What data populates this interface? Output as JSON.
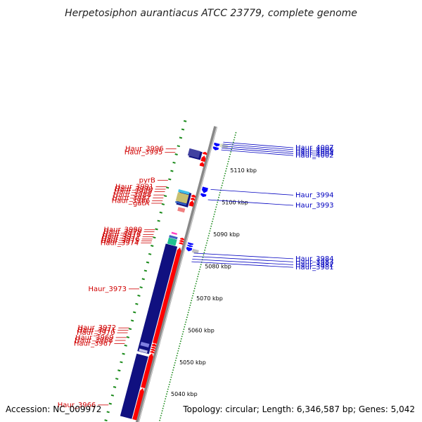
{
  "title": "Herpetosiphon aurantiacus ATCC 23779, complete genome",
  "footer": {
    "accession": "Accession: NC_009972",
    "summary": "Topology: circular; Length: 6,346,587 bp; Genes: 5,042"
  },
  "colors": {
    "forward_gene": "#ff0000",
    "reverse_gene": "#0000ff",
    "backbone": "#888888",
    "cds_bar": "#101080",
    "gc_dots": "#1a8a1a",
    "label_forward": "#d00000",
    "label_reverse": "#0000c0"
  },
  "scale": {
    "ticks": [
      {
        "kbp": 5040,
        "label": "5040 kbp"
      },
      {
        "kbp": 5050,
        "label": "5050 kbp"
      },
      {
        "kbp": 5060,
        "label": "5060 kbp"
      },
      {
        "kbp": 5070,
        "label": "5070 kbp"
      },
      {
        "kbp": 5080,
        "label": "5080 kbp"
      },
      {
        "kbp": 5090,
        "label": "5090 kbp"
      },
      {
        "kbp": 5100,
        "label": "5100 kbp"
      },
      {
        "kbp": 5110,
        "label": "5110 kbp"
      }
    ]
  },
  "forward_labels": [
    {
      "name": "Haur_3996",
      "kbp": 5112.4
    },
    {
      "name": "Haur_3995",
      "kbp": 5111.3
    },
    {
      "name": "pyrB",
      "kbp": 5102.6
    },
    {
      "name": "Haur_3991",
      "kbp": 5100.6
    },
    {
      "name": "Haur_3990",
      "kbp": 5099.8
    },
    {
      "name": "Haur_3989",
      "kbp": 5099.0
    },
    {
      "name": "Haur_3988",
      "kbp": 5098.0
    },
    {
      "name": "Haur_3987",
      "kbp": 5097.1
    },
    {
      "name": "Haur_3986",
      "kbp": 5096.2
    },
    {
      "name": "gatA",
      "kbp": 5095.4
    },
    {
      "name": "Haur_3980",
      "kbp": 5087.1
    },
    {
      "name": "Haur_3979",
      "kbp": 5086.5
    },
    {
      "name": "Haur_3978",
      "kbp": 5085.6
    },
    {
      "name": "Haur_3977",
      "kbp": 5084.9
    },
    {
      "name": "Haur_3976",
      "kbp": 5084.2
    },
    {
      "name": "Haur_3975",
      "kbp": 5083.6
    },
    {
      "name": "Haur_3974",
      "kbp": 5083.0
    },
    {
      "name": "Haur_3973",
      "kbp": 5068.6
    },
    {
      "name": "Haur_3972",
      "kbp": 5056.4
    },
    {
      "name": "Haur_3971",
      "kbp": 5055.7
    },
    {
      "name": "Haur_3970",
      "kbp": 5054.9
    },
    {
      "name": "Haur_3969",
      "kbp": 5053.4
    },
    {
      "name": "Haur_3968",
      "kbp": 5052.5
    },
    {
      "name": "Haur_3967",
      "kbp": 5051.5
    },
    {
      "name": "Haur_3966",
      "kbp": 5032.3
    }
  ],
  "reverse_labels": [
    {
      "name": "Haur_4007",
      "kbp": 5118.0
    },
    {
      "name": "Haur_4006",
      "kbp": 5117.4
    },
    {
      "name": "Haur_4005",
      "kbp": 5116.8
    },
    {
      "name": "Haur_4004",
      "kbp": 5116.2
    },
    {
      "name": "Haur_4002",
      "kbp": 5115.6
    },
    {
      "name": "Haur_3994",
      "kbp": 5103.2
    },
    {
      "name": "Haur_3993",
      "kbp": 5100.0
    },
    {
      "name": "Haur_3984",
      "kbp": 5083.3
    },
    {
      "name": "Haur_3983",
      "kbp": 5082.3
    },
    {
      "name": "Haur_3982",
      "kbp": 5081.4
    },
    {
      "name": "Haur_3981",
      "kbp": 5080.6
    }
  ],
  "forward_genes": [
    {
      "start": 5110.8,
      "end": 5112.6
    },
    {
      "start": 5109.3,
      "end": 5110.6
    },
    {
      "start": 5113.0,
      "end": 5113.8
    },
    {
      "start": 5099.6,
      "end": 5100.4
    },
    {
      "start": 5098.7,
      "end": 5099.5
    },
    {
      "start": 5096.8,
      "end": 5098.6
    },
    {
      "start": 5086.3,
      "end": 5086.9
    },
    {
      "start": 5085.6,
      "end": 5086.2
    },
    {
      "start": 5084.9,
      "end": 5085.5
    },
    {
      "start": 5053.9,
      "end": 5083.9
    },
    {
      "start": 5053.0,
      "end": 5053.8
    },
    {
      "start": 5052.3,
      "end": 5052.9
    },
    {
      "start": 5051.6,
      "end": 5052.2
    },
    {
      "start": 5050.9,
      "end": 5051.5
    },
    {
      "start": 5040.0,
      "end": 5050.8
    },
    {
      "start": 5030.0,
      "end": 5039.9
    }
  ],
  "reverse_genes": [
    {
      "start": 5115.0,
      "end": 5116.0
    },
    {
      "start": 5116.2,
      "end": 5117.2
    },
    {
      "start": 5101.6,
      "end": 5103.4
    },
    {
      "start": 5100.4,
      "end": 5101.4
    },
    {
      "start": 5085.4,
      "end": 5086.0
    },
    {
      "start": 5084.8,
      "end": 5085.3
    },
    {
      "start": 5083.4,
      "end": 5084.6
    }
  ]
}
